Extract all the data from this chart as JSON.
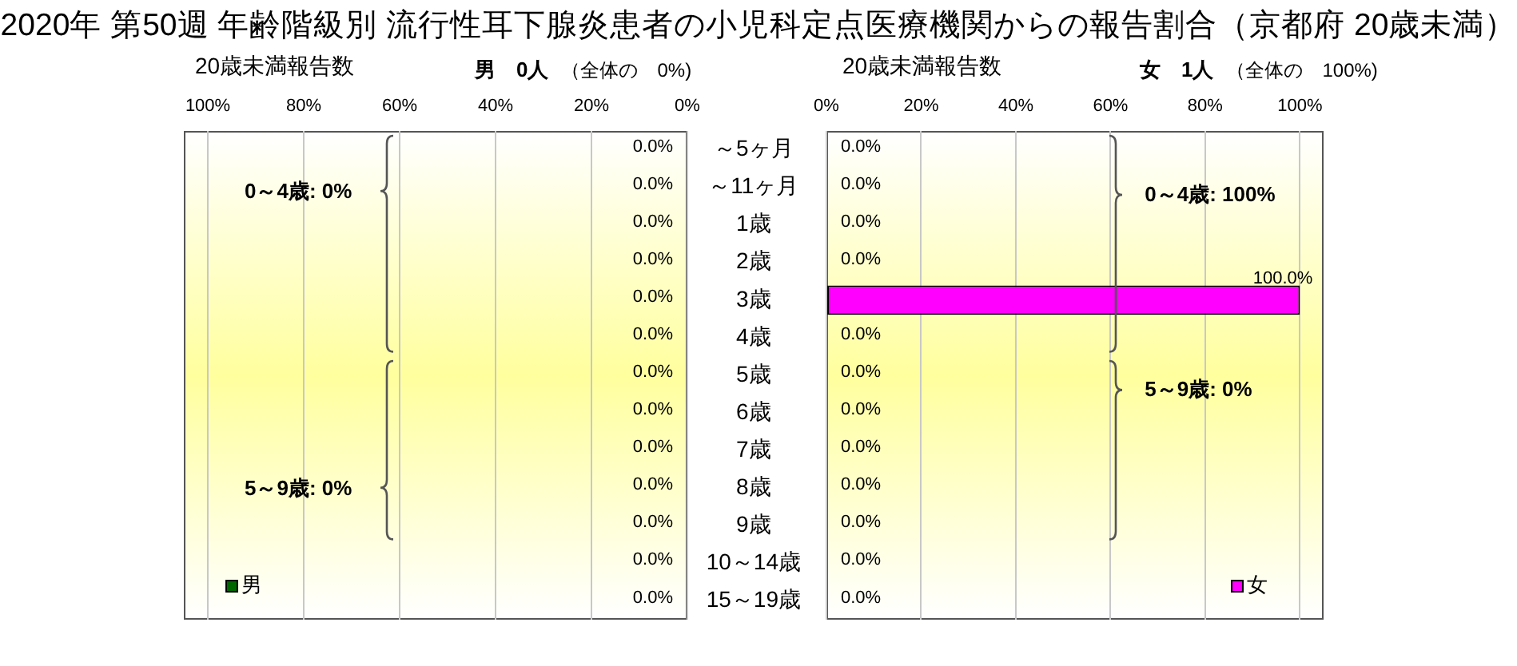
{
  "chart_data": [
    {
      "type": "bar",
      "orientation": "horizontal",
      "title": "2020年 第50週 年齢階級別 流行性耳下腺炎患者の小児科定点医療機関からの報告割合（京都府 20歳未満）",
      "subtitle": "男　0人",
      "xlabel": "20歳未満報告数",
      "annotations": [
        "（全体の　0%)",
        "0～4歳: 0%",
        "5～9歳: 0%"
      ],
      "categories": [
        null,
        null,
        null,
        null,
        null,
        null,
        null,
        null,
        null,
        null,
        null,
        null,
        null
      ],
      "series": [
        {
          "name": "男",
          "color": "#006600",
          "values": [
            0,
            0,
            0,
            0,
            0,
            0,
            0,
            0,
            0,
            0,
            0,
            0,
            0
          ],
          "value_labels": [
            "0.0%",
            "0.0%",
            "0.0%",
            "0.0%",
            "0.0%",
            "0.0%",
            "0.0%",
            "0.0%",
            "0.0%",
            "0.0%",
            "0.0%",
            "0.0%",
            "0.0%"
          ]
        }
      ],
      "xlim": [
        105,
        0
      ],
      "xticks": [
        {
          "value": 100,
          "label": "100%"
        },
        {
          "value": 80,
          "label": "80%"
        },
        {
          "value": 60,
          "label": "60%"
        },
        {
          "value": 40,
          "label": "40%"
        },
        {
          "value": 20,
          "label": "20%"
        },
        {
          "value": 0,
          "label": "0%"
        }
      ],
      "grid": "x",
      "legend": "bottom left",
      "tick_labels": "x"
    },
    {
      "type": "bar",
      "orientation": "horizontal",
      "subtitle": "女　1人",
      "xlabel": "20歳未満報告数",
      "annotations": [
        "（全体の　100%)",
        "0～4歳: 100%",
        "5～9歳: 0%"
      ],
      "categories": [
        "～5ヶ月",
        "～11ヶ月",
        "1歳",
        "2歳",
        "3歳",
        "4歳",
        "5歳",
        "6歳",
        "7歳",
        "8歳",
        "9歳",
        "10～14歳",
        "15～19歳"
      ],
      "series": [
        {
          "name": "女",
          "color": "#ff00ff",
          "values": [
            0,
            0,
            0,
            0,
            100,
            0,
            0,
            0,
            0,
            0,
            0,
            0,
            0
          ],
          "value_labels": [
            "0.0%",
            "0.0%",
            "0.0%",
            "0.0%",
            "100.0%",
            "0.0%",
            "0.0%",
            "0.0%",
            "0.0%",
            "0.0%",
            "0.0%",
            "0.0%",
            "0.0%"
          ]
        }
      ],
      "xlim": [
        0,
        105
      ],
      "xticks": [
        {
          "value": 0,
          "label": "0%"
        },
        {
          "value": 20,
          "label": "20%"
        },
        {
          "value": 40,
          "label": "40%"
        },
        {
          "value": 60,
          "label": "60%"
        },
        {
          "value": 80,
          "label": "80%"
        },
        {
          "value": 100,
          "label": "100%"
        }
      ],
      "grid": "x",
      "legend": "bottom right"
    }
  ]
}
